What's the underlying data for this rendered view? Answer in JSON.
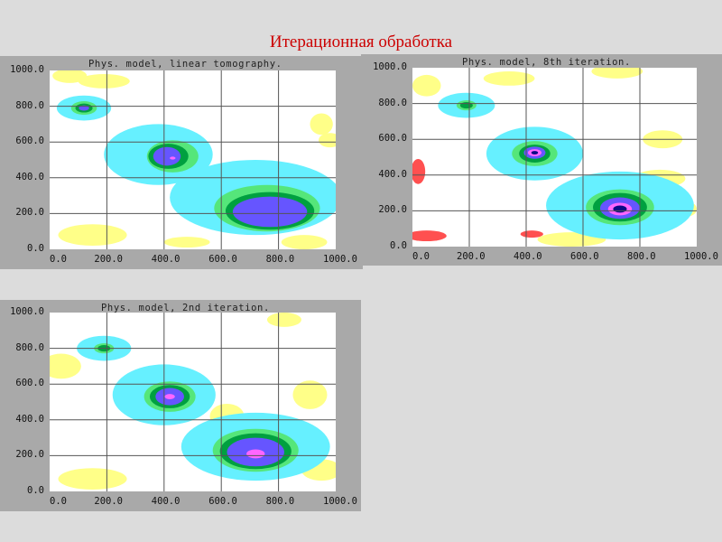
{
  "slide": {
    "title": "Итерационная обработка"
  },
  "colors": {
    "background": "#ffffff",
    "yellow": "#ffff88",
    "cyan": "#66f0ff",
    "lightgreen": "#55e67a",
    "green": "#00a040",
    "blue": "#6655ff",
    "magenta": "#ff66ff",
    "navy": "#0a0a88",
    "red": "#ff5050",
    "grid": "#555555"
  },
  "panels": [
    {
      "id": "linear",
      "title": "Phys. model, linear tomography.",
      "y_ticks": [
        "1000.0",
        "800.0",
        "600.0",
        "400.0",
        "200.0",
        "0.0"
      ],
      "x_ticks": [
        "0.0",
        "200.0",
        "400.0",
        "600.0",
        "800.0",
        "1000.0"
      ],
      "xlim": [
        0,
        1000
      ],
      "ylim": [
        0,
        1000
      ]
    },
    {
      "id": "iter8",
      "title": "Phys. model, 8th iteration.",
      "y_ticks": [
        "1000.0",
        "800.0",
        "600.0",
        "400.0",
        "200.0",
        "0.0"
      ],
      "x_ticks": [
        "0.0",
        "200.0",
        "400.0",
        "600.0",
        "800.0",
        "1000.0"
      ],
      "xlim": [
        0,
        1000
      ],
      "ylim": [
        0,
        1000
      ]
    },
    {
      "id": "iter2",
      "title": "Phys. model, 2nd iteration.",
      "y_ticks": [
        "1000.0",
        "800.0",
        "600.0",
        "400.0",
        "200.0",
        "0.0"
      ],
      "x_ticks": [
        "0.0",
        "200.0",
        "400.0",
        "600.0",
        "800.0",
        "1000.0"
      ],
      "xlim": [
        0,
        1000
      ],
      "ylim": [
        0,
        1000
      ]
    }
  ]
}
